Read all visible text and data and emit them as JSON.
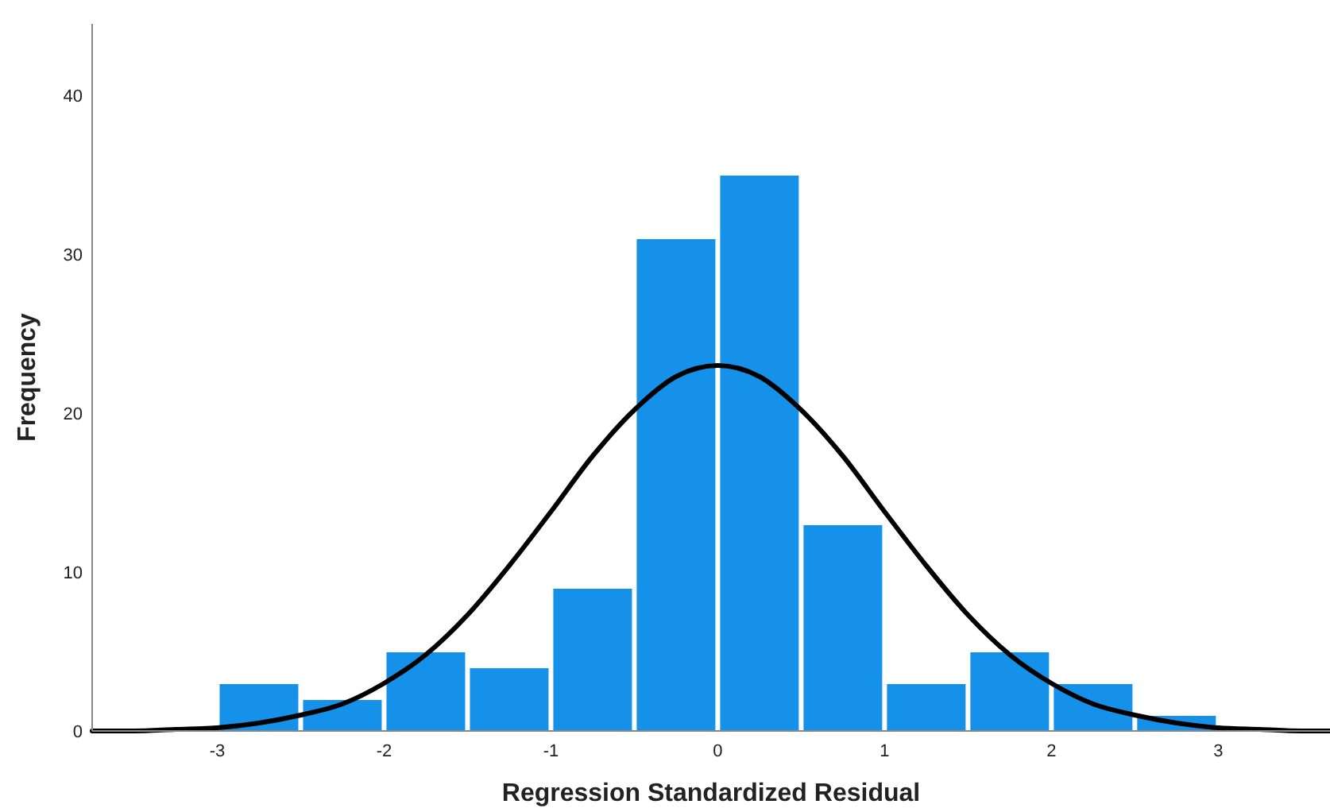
{
  "chart_data": {
    "type": "histogram",
    "xlabel": "Regression Standardized Residual",
    "ylabel": "Frequency",
    "bins": [
      -3,
      -2.5,
      -2,
      -1.5,
      -1,
      -0.5,
      0,
      0.5,
      1,
      1.5,
      2,
      2.5,
      3
    ],
    "values": [
      3,
      2,
      5,
      4,
      9,
      31,
      35,
      13,
      3,
      5,
      3,
      1
    ],
    "color": "#1591ea",
    "series": [
      {
        "type": "line",
        "color": "#000000",
        "x": [
          -3.75,
          -3.5,
          -3.25,
          -3,
          -2.75,
          -2.5,
          -2.25,
          -2,
          -1.75,
          -1.5,
          -1.25,
          -1,
          -0.75,
          -0.5,
          -0.25,
          0,
          0.25,
          0.5,
          0.75,
          1,
          1.25,
          1.5,
          1.75,
          2,
          2.25,
          2.5,
          2.75,
          3,
          3.25,
          3.5,
          3.67
        ],
        "values": [
          0,
          0,
          0.1,
          0.2,
          0.5,
          1,
          1.7,
          3,
          4.8,
          7.3,
          10.4,
          13.8,
          17.3,
          20.2,
          22.3,
          23,
          22.3,
          20.2,
          17.3,
          13.8,
          10.4,
          7.3,
          4.8,
          3,
          1.7,
          1,
          0.5,
          0.2,
          0.1,
          0,
          0
        ]
      }
    ],
    "xlim": [
      -3.75,
      3.67
    ],
    "xticks": [
      -3,
      -2,
      -1,
      0,
      1,
      2,
      3
    ],
    "ylim": [
      0,
      44.5
    ],
    "yticks": [
      0,
      10,
      20,
      30,
      40
    ]
  }
}
